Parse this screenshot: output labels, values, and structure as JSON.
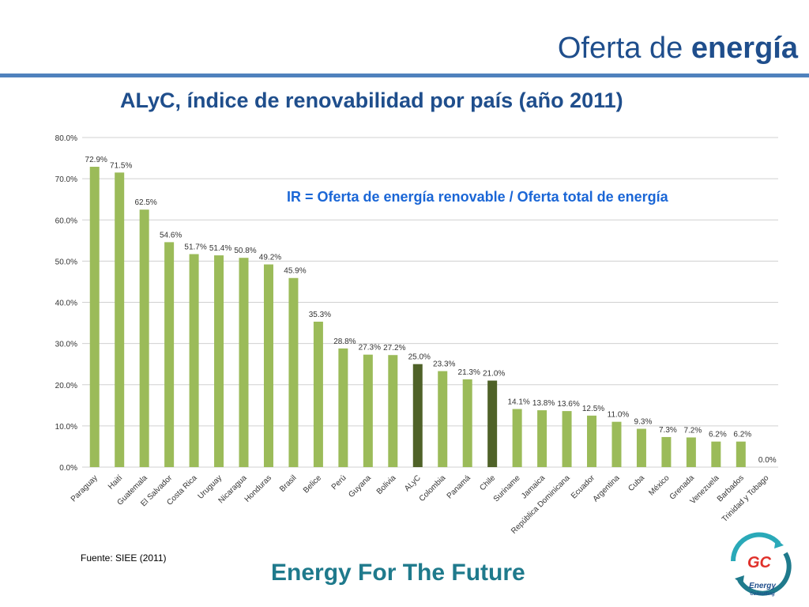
{
  "header": {
    "title_regular": "Oferta de",
    "title_bold": "energía"
  },
  "chart_title": "ALyC, índice de renovabilidad por país (año 2011)",
  "formula": "IR = Oferta de energía renovable / Oferta total de energía",
  "footer": {
    "source": "Fuente:  SIEE (2011)",
    "slogan": "Energy For The Future",
    "logo_letters": "GC",
    "logo_caption_1": "Energy",
    "logo_caption_2": "Consulting"
  },
  "colors": {
    "bar": "#9bbb59",
    "highlight_bar": "#4f6228",
    "title_blue": "#1f4e8c",
    "rule_blue": "#4f81bd",
    "formula_blue": "#1a66d6",
    "slogan_teal": "#1f7a8c"
  },
  "chart_data": {
    "type": "bar",
    "categories": [
      "Paraguay",
      "Haití",
      "Guatemala",
      "El Salvador",
      "Costa Rica",
      "Uruguay",
      "Nicaragua",
      "Honduras",
      "Brasil",
      "Belice",
      "Perú",
      "Guyana",
      "Bolivia",
      "ALyC",
      "Colombia",
      "Panamá",
      "Chile",
      "Suriname",
      "Jamaica",
      "República Dominicana",
      "Ecuador",
      "Argentina",
      "Cuba",
      "México",
      "Grenada",
      "Venezuela",
      "Barbados",
      "Trinidad y Tobago"
    ],
    "values": [
      72.9,
      71.5,
      62.5,
      54.6,
      51.7,
      51.4,
      50.8,
      49.2,
      45.9,
      35.3,
      28.8,
      27.3,
      27.2,
      25.0,
      23.3,
      21.3,
      21.0,
      14.1,
      13.8,
      13.6,
      12.5,
      11.0,
      9.3,
      7.3,
      7.2,
      6.2,
      6.2,
      0.0
    ],
    "value_labels": [
      "72.9%",
      "71.5%",
      "62.5%",
      "54.6%",
      "51.7%",
      "51.4%",
      "50.8%",
      "49.2%",
      "45.9%",
      "35.3%",
      "28.8%",
      "27.3%",
      "27.2%",
      "25.0%",
      "23.3%",
      "21.3%",
      "21.0%",
      "14.1%",
      "13.8%",
      "13.6%",
      "12.5%",
      "11.0%",
      "9.3%",
      "7.3%",
      "7.2%",
      "6.2%",
      "6.2%",
      "0.0%"
    ],
    "highlighted": [
      "ALyC",
      "Chile"
    ],
    "ylim": [
      0,
      80
    ],
    "yticks": [
      "0.0%",
      "10.0%",
      "20.0%",
      "30.0%",
      "40.0%",
      "50.0%",
      "60.0%",
      "70.0%",
      "80.0%"
    ],
    "grid": true,
    "legend": "none"
  }
}
